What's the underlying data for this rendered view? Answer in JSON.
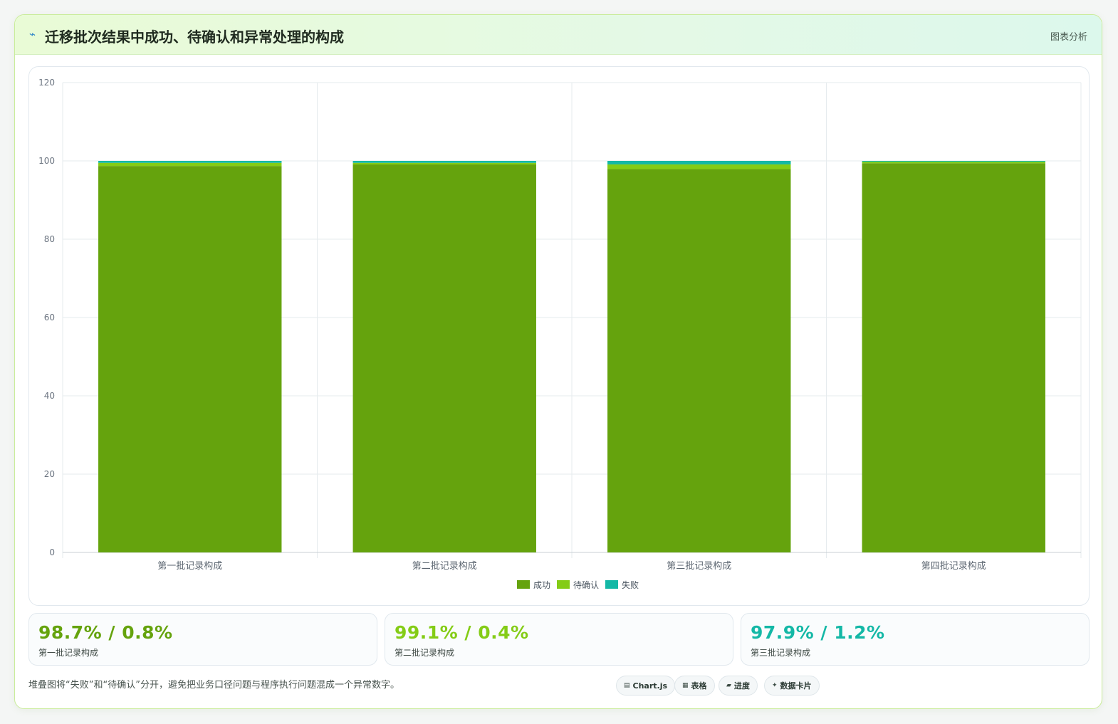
{
  "header": {
    "icon": "⌁",
    "title": "迁移批次结果中成功、待确认和异常处理的构成",
    "badge": "图表分析"
  },
  "chart_data": {
    "type": "bar",
    "stacked": true,
    "categories": [
      "第一批记录构成",
      "第二批记录构成",
      "第三批记录构成",
      "第四批记录构成"
    ],
    "series": [
      {
        "name": "成功",
        "color": "#65a30d",
        "values": [
          98.7,
          99.1,
          97.9,
          99.4
        ]
      },
      {
        "name": "待确认",
        "color": "#84cc16",
        "values": [
          0.8,
          0.4,
          1.2,
          0.4
        ]
      },
      {
        "name": "失败",
        "color": "#14b8a6",
        "values": [
          0.5,
          0.5,
          0.9,
          0.2
        ]
      }
    ],
    "ylim": [
      0,
      120
    ],
    "yticks": [
      0,
      20,
      40,
      60,
      80,
      100,
      120
    ],
    "grid": true,
    "legend": "bottom-center"
  },
  "stats": [
    {
      "value": "98.7% / 0.8%",
      "label": "第一批记录构成",
      "color": "#65a30d"
    },
    {
      "value": "99.1% / 0.4%",
      "label": "第二批记录构成",
      "color": "#84cc16"
    },
    {
      "value": "97.9% / 1.2%",
      "label": "第三批记录构成",
      "color": "#14b8a6"
    }
  ],
  "footnote": "堆叠图将“失败”和“待确认”分开，避免把业务口径问题与程序执行问题混成一个异常数字。",
  "tags": [
    {
      "icon": "▤",
      "icon_name": "chart-icon",
      "label": "Chart.js"
    },
    {
      "icon": "▦",
      "icon_name": "table-icon",
      "label": "表格"
    },
    {
      "icon": "▰",
      "icon_name": "progress-icon",
      "label": "进度"
    },
    {
      "icon": "✦",
      "icon_name": "sparkle-icon",
      "label": "数据卡片"
    }
  ]
}
